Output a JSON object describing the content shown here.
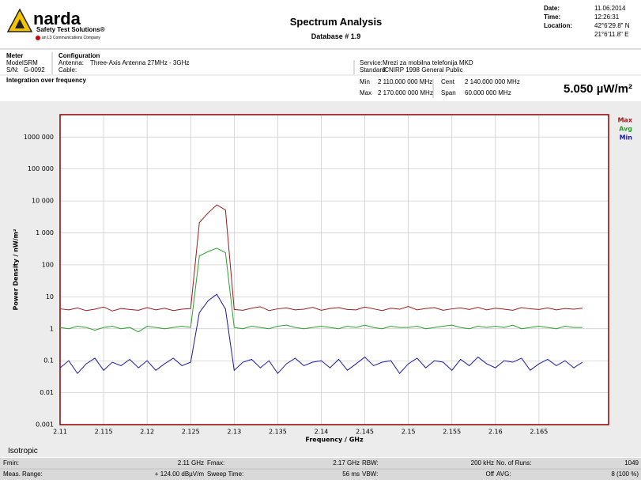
{
  "header": {
    "brand": "narda",
    "brand_sub": "Safety Test Solutions®",
    "brand_parent": "an L3 Communications Company",
    "title": "Spectrum Analysis",
    "subtitle": "Database # 1.9",
    "info": [
      {
        "label": "Date:",
        "value": "11.06.2014"
      },
      {
        "label": "Time:",
        "value": "12:26:31"
      },
      {
        "label": "Location:",
        "value": [
          "42°6'29.8\" N",
          "21°6'11.8\" E"
        ]
      }
    ]
  },
  "meter": {
    "heading": "Meter",
    "fields": [
      {
        "label": "Model:",
        "value": "SRM"
      },
      {
        "label": "S/N:",
        "value": "G-0092"
      }
    ]
  },
  "configuration": {
    "heading": "Configuration",
    "fields": [
      {
        "label": "Antenna:",
        "value": "Three-Axis Antenna 27MHz - 3GHz"
      },
      {
        "label": "Cable:"
      }
    ]
  },
  "service": [
    {
      "label": "Service:",
      "value": "Mrezi za mobilna telefonija MKD"
    },
    {
      "label": "Standard:",
      "value": "ICNIRP 1998 General Public"
    }
  ],
  "mode": "Integration over frequency",
  "frequency": [
    {
      "label": "Min",
      "value": "2 110.000 000 MHz"
    },
    {
      "label": "Max",
      "value": "2 170.000 000 MHz"
    },
    {
      "label": "Cent",
      "value": "2 140.000 000 MHz"
    },
    {
      "label": "Span",
      "value": "60.000 000 MHz"
    }
  ],
  "result": "5.050 µW/m²",
  "chart_data": {
    "type": "line",
    "xlabel": "Frequency / GHz",
    "ylabel": "Power Density / nW/m²",
    "log_y": true,
    "grid": true,
    "legend": "top-right",
    "xlim": [
      2.11,
      2.173
    ],
    "xticks": [
      2.11,
      2.115,
      2.12,
      2.125,
      2.13,
      2.135,
      2.14,
      2.145,
      2.15,
      2.155,
      2.16,
      2.165
    ],
    "ylim": [
      0.001,
      5000000
    ],
    "yticks": [
      0.001,
      0.01,
      0.1,
      1,
      10,
      100,
      {
        "value": 1000,
        "label": "1 000"
      },
      {
        "value": 10000,
        "label": "10 000"
      },
      {
        "value": 100000,
        "label": "100 000"
      },
      {
        "value": 1000000,
        "label": "1000 000"
      }
    ],
    "x": [
      2.11,
      2.111,
      2.112,
      2.113,
      2.114,
      2.115,
      2.116,
      2.117,
      2.118,
      2.119,
      2.12,
      2.121,
      2.122,
      2.123,
      2.124,
      2.125,
      2.126,
      2.127,
      2.128,
      2.129,
      2.13,
      2.131,
      2.132,
      2.133,
      2.134,
      2.135,
      2.136,
      2.137,
      2.138,
      2.139,
      2.14,
      2.141,
      2.142,
      2.143,
      2.144,
      2.145,
      2.146,
      2.147,
      2.148,
      2.149,
      2.15,
      2.151,
      2.152,
      2.153,
      2.154,
      2.155,
      2.156,
      2.157,
      2.158,
      2.159,
      2.16,
      2.161,
      2.162,
      2.163,
      2.164,
      2.165,
      2.166,
      2.167,
      2.168,
      2.169,
      2.17
    ],
    "series": [
      {
        "name": "Max",
        "color": "#9b1c1c",
        "values": [
          4.2,
          3.9,
          4.5,
          3.7,
          4.1,
          4.8,
          3.6,
          4.3,
          4.0,
          3.8,
          4.6,
          3.9,
          4.4,
          3.7,
          4.1,
          4.3,
          2100,
          4200,
          7500,
          5200,
          4.0,
          3.8,
          4.4,
          4.9,
          3.7,
          4.2,
          4.5,
          3.9,
          4.1,
          4.7,
          3.8,
          4.3,
          4.6,
          4.0,
          3.9,
          4.8,
          4.2,
          3.7,
          4.4,
          4.1,
          5.0,
          3.9,
          4.3,
          4.6,
          3.8,
          4.2,
          4.5,
          4.0,
          4.7,
          3.9,
          4.4,
          4.1,
          3.8,
          4.6,
          4.2,
          4.0,
          4.5,
          3.9,
          4.3,
          4.1,
          4.4
        ]
      },
      {
        "name": "Avg",
        "color": "#2ca02c",
        "values": [
          1.1,
          1.0,
          1.2,
          1.1,
          0.9,
          1.1,
          1.2,
          1.0,
          1.1,
          0.8,
          1.2,
          1.1,
          1.0,
          1.1,
          1.2,
          1.1,
          190,
          260,
          330,
          240,
          1.1,
          1.0,
          1.2,
          1.1,
          1.0,
          1.2,
          1.3,
          1.1,
          1.0,
          1.1,
          1.2,
          1.1,
          1.0,
          1.2,
          1.1,
          1.3,
          1.1,
          1.0,
          1.2,
          1.1,
          1.1,
          1.2,
          1.0,
          1.1,
          1.2,
          1.3,
          1.1,
          1.0,
          1.2,
          1.1,
          1.2,
          1.1,
          1.3,
          1.0,
          1.1,
          1.2,
          1.1,
          1.0,
          1.2,
          1.1,
          1.1
        ]
      },
      {
        "name": "Min",
        "color": "#1a1aa0",
        "values": [
          0.06,
          0.1,
          0.04,
          0.08,
          0.12,
          0.05,
          0.09,
          0.07,
          0.11,
          0.06,
          0.1,
          0.05,
          0.08,
          0.12,
          0.07,
          0.09,
          3.2,
          7.5,
          12,
          4.1,
          0.05,
          0.09,
          0.11,
          0.06,
          0.1,
          0.04,
          0.08,
          0.12,
          0.07,
          0.09,
          0.1,
          0.06,
          0.11,
          0.05,
          0.08,
          0.13,
          0.07,
          0.09,
          0.1,
          0.04,
          0.08,
          0.12,
          0.06,
          0.1,
          0.09,
          0.05,
          0.11,
          0.07,
          0.13,
          0.08,
          0.06,
          0.1,
          0.09,
          0.12,
          0.05,
          0.08,
          0.11,
          0.07,
          0.1,
          0.06,
          0.09
        ]
      }
    ]
  },
  "probe": "Isotropic",
  "footer": [
    [
      {
        "label": "Fmin:",
        "value": "2.11 GHz"
      },
      {
        "label": "Fmax:",
        "value": "2.17 GHz"
      },
      {
        "label": "RBW:",
        "value": "200 kHz"
      },
      {
        "label": "No. of Runs:",
        "value": "1049"
      }
    ],
    [
      {
        "label": "Meas. Range:",
        "value": "+ 124.00 dBµV/m"
      },
      {
        "label": "Sweep Time:",
        "value": "56 ms"
      },
      {
        "label": "VBW:",
        "value": "Off"
      },
      {
        "label": "AVG:",
        "value": "8 (100 %)"
      }
    ]
  ]
}
